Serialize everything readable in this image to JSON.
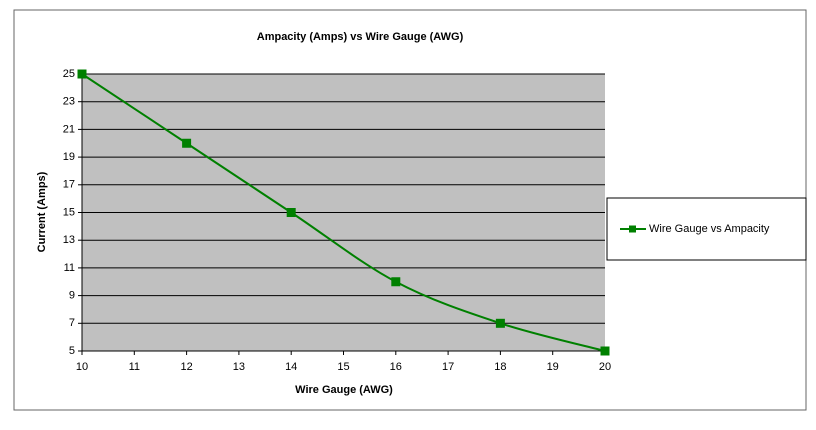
{
  "chart_data": {
    "type": "line",
    "title": "Ampacity (Amps) vs Wire Gauge (AWG)",
    "x_label": "Wire Gauge (AWG)",
    "y_label": "Current (Amps)",
    "x": [
      10,
      12,
      14,
      16,
      18,
      20
    ],
    "series": [
      {
        "name": "Wire Gauge vs Ampacity",
        "color": "#008000",
        "values": [
          25,
          20,
          15,
          10,
          7,
          5
        ]
      }
    ],
    "xlim": [
      10,
      20
    ],
    "xticks": [
      10,
      11,
      12,
      13,
      14,
      15,
      16,
      17,
      18,
      19,
      20
    ],
    "ylim": [
      5,
      25
    ],
    "yticks": [
      5,
      7,
      9,
      11,
      13,
      15,
      17,
      19,
      21,
      23,
      25
    ],
    "grid": true,
    "legend": "right",
    "smooth": true,
    "marker": "square"
  }
}
